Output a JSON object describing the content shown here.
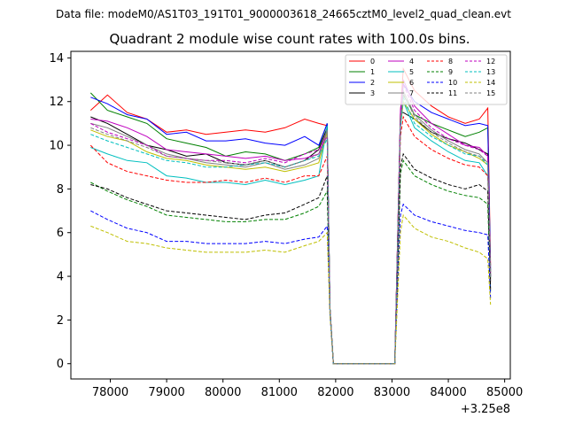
{
  "chart_data": {
    "type": "line",
    "suptitle": "Data file: modeM0/AS1T03_191T01_9000003618_24665cztM0_level2_quad_clean.evt",
    "title": "Quadrant 2 module wise count rates with 100.0s bins.",
    "xlabel": "",
    "ylabel": "",
    "x_offset_label": "+3.25e8",
    "xlim": [
      77300,
      85100
    ],
    "ylim": [
      -0.7,
      14.3
    ],
    "xticks": [
      78000,
      79000,
      80000,
      81000,
      82000,
      83000,
      84000,
      85000
    ],
    "yticks": [
      0,
      2,
      4,
      6,
      8,
      10,
      12,
      14
    ],
    "gaps": [
      [
        81950,
        83050
      ]
    ],
    "segments": [
      [
        77650,
        81850
      ],
      [
        83100,
        84750
      ]
    ],
    "series": [
      {
        "name": "0",
        "color": "#ff0000",
        "dash": "solid",
        "values": [
          11.6,
          12.3,
          11.5,
          11.2,
          10.6,
          10.7,
          10.5,
          10.6,
          10.7,
          10.6,
          10.8,
          11.2,
          11.0,
          10.9,
          2.5,
          0,
          0,
          11.5,
          13.5,
          12.5,
          11.8,
          11.3,
          11.0,
          11.2,
          11.7,
          4.5
        ]
      },
      {
        "name": "1",
        "color": "#008000",
        "dash": "solid",
        "values": [
          12.4,
          11.6,
          11.3,
          11.0,
          10.3,
          10.1,
          9.9,
          9.5,
          9.7,
          9.6,
          9.3,
          9.6,
          9.9,
          11.0,
          2.5,
          0,
          0,
          11.0,
          12.3,
          11.4,
          11.0,
          10.7,
          10.4,
          10.6,
          10.8,
          4.2
        ]
      },
      {
        "name": "2",
        "color": "#0000ff",
        "dash": "solid",
        "values": [
          12.2,
          11.9,
          11.4,
          11.2,
          10.5,
          10.6,
          10.2,
          10.2,
          10.3,
          10.1,
          10.0,
          10.4,
          10.0,
          11.0,
          2.5,
          0,
          0,
          11.2,
          12.8,
          12.0,
          11.5,
          11.2,
          10.9,
          11.0,
          10.9,
          4.3
        ]
      },
      {
        "name": "3",
        "color": "#000000",
        "dash": "solid",
        "values": [
          11.3,
          11.0,
          10.5,
          10.0,
          9.8,
          9.5,
          9.6,
          9.2,
          9.1,
          9.3,
          9.0,
          9.3,
          9.8,
          10.8,
          2.5,
          0,
          0,
          11.5,
          11.5,
          11.2,
          10.6,
          10.3,
          10.1,
          9.8,
          9.6,
          4.0
        ]
      },
      {
        "name": "4",
        "color": "#bf00bf",
        "dash": "solid",
        "values": [
          11.2,
          11.1,
          10.8,
          10.4,
          9.8,
          9.7,
          9.6,
          9.5,
          9.4,
          9.5,
          9.3,
          9.4,
          9.6,
          10.7,
          2.5,
          0,
          0,
          11.6,
          13.0,
          11.8,
          11.0,
          10.5,
          10.0,
          9.9,
          9.5,
          4.0
        ]
      },
      {
        "name": "5",
        "color": "#00bfbf",
        "dash": "solid",
        "values": [
          9.9,
          9.6,
          9.3,
          9.2,
          8.6,
          8.5,
          8.3,
          8.3,
          8.2,
          8.4,
          8.2,
          8.4,
          8.6,
          10.9,
          2.5,
          0,
          0,
          10.8,
          12.0,
          10.8,
          10.2,
          9.7,
          9.3,
          9.2,
          8.6,
          3.8
        ]
      },
      {
        "name": "6",
        "color": "#bfbf00",
        "dash": "solid",
        "values": [
          10.7,
          10.4,
          10.2,
          9.7,
          9.4,
          9.3,
          9.1,
          9.0,
          8.9,
          9.0,
          8.8,
          9.0,
          9.2,
          10.6,
          2.5,
          0,
          0,
          11.0,
          12.0,
          11.2,
          10.5,
          10.0,
          9.7,
          9.4,
          9.1,
          3.9
        ]
      },
      {
        "name": "7",
        "color": "#808080",
        "dash": "solid",
        "values": [
          11.0,
          10.8,
          10.4,
          10.0,
          9.6,
          9.4,
          9.2,
          9.1,
          9.0,
          9.2,
          8.9,
          9.1,
          9.4,
          10.7,
          2.5,
          0,
          0,
          11.2,
          12.5,
          11.4,
          10.7,
          10.2,
          9.8,
          9.6,
          9.2,
          3.9
        ]
      },
      {
        "name": "8",
        "color": "#ff0000",
        "dash": "dashed",
        "values": [
          10.0,
          9.2,
          8.8,
          8.6,
          8.4,
          8.3,
          8.3,
          8.4,
          8.3,
          8.5,
          8.3,
          8.6,
          8.6,
          9.5,
          2.5,
          0,
          0,
          10.4,
          11.3,
          10.4,
          9.8,
          9.4,
          9.1,
          9.0,
          8.6,
          3.7
        ]
      },
      {
        "name": "9",
        "color": "#008000",
        "dash": "dashed",
        "values": [
          8.3,
          7.9,
          7.5,
          7.2,
          6.8,
          6.7,
          6.6,
          6.5,
          6.5,
          6.6,
          6.6,
          6.9,
          7.2,
          7.9,
          2.4,
          0,
          0,
          8.7,
          9.3,
          8.6,
          8.2,
          7.9,
          7.7,
          7.6,
          7.3,
          3.3
        ]
      },
      {
        "name": "10",
        "color": "#0000ff",
        "dash": "dashed",
        "values": [
          7.0,
          6.6,
          6.2,
          6.0,
          5.6,
          5.6,
          5.5,
          5.5,
          5.5,
          5.6,
          5.5,
          5.7,
          5.8,
          6.3,
          2.2,
          0,
          0,
          6.8,
          7.3,
          6.8,
          6.5,
          6.3,
          6.1,
          6.0,
          5.9,
          3.0
        ]
      },
      {
        "name": "11",
        "color": "#000000",
        "dash": "dashed",
        "values": [
          8.2,
          8.0,
          7.6,
          7.3,
          7.0,
          6.9,
          6.8,
          6.7,
          6.6,
          6.8,
          6.9,
          7.3,
          7.6,
          8.6,
          2.5,
          0,
          0,
          9.0,
          9.6,
          8.9,
          8.5,
          8.2,
          8.0,
          8.2,
          7.9,
          3.4
        ]
      },
      {
        "name": "12",
        "color": "#bf00bf",
        "dash": "dashed",
        "values": [
          11.0,
          10.6,
          10.3,
          10.0,
          9.5,
          9.4,
          9.3,
          9.3,
          9.2,
          9.4,
          9.2,
          9.6,
          9.8,
          10.4,
          2.5,
          0,
          0,
          11.0,
          12.8,
          11.6,
          10.8,
          10.3,
          10.0,
          9.8,
          9.5,
          4.0
        ]
      },
      {
        "name": "13",
        "color": "#00bfbf",
        "dash": "dashed",
        "values": [
          10.5,
          10.2,
          9.9,
          9.6,
          9.3,
          9.2,
          9.0,
          9.0,
          9.1,
          9.2,
          9.0,
          9.3,
          9.5,
          10.3,
          2.5,
          0,
          0,
          11.0,
          12.2,
          11.0,
          10.4,
          10.0,
          9.6,
          9.5,
          9.1,
          3.9
        ]
      },
      {
        "name": "14",
        "color": "#bfbf00",
        "dash": "dashed",
        "values": [
          6.3,
          6.0,
          5.6,
          5.5,
          5.3,
          5.2,
          5.1,
          5.1,
          5.1,
          5.2,
          5.1,
          5.4,
          5.6,
          6.0,
          2.2,
          0,
          0,
          6.0,
          6.8,
          6.2,
          5.8,
          5.6,
          5.3,
          5.1,
          4.8,
          2.7
        ]
      },
      {
        "name": "15",
        "color": "#808080",
        "dash": "dashed",
        "values": [
          10.8,
          10.5,
          10.2,
          9.9,
          9.5,
          9.4,
          9.3,
          9.2,
          9.1,
          9.3,
          9.0,
          9.3,
          9.6,
          10.4,
          2.5,
          0,
          0,
          11.1,
          12.4,
          11.3,
          10.6,
          10.1,
          9.7,
          9.5,
          9.2,
          3.9
        ]
      }
    ],
    "x": [
      77650,
      77950,
      78300,
      78650,
      79000,
      79350,
      79700,
      80050,
      80400,
      80750,
      81100,
      81450,
      81700,
      81850,
      81900,
      81960,
      83050,
      83150,
      83200,
      83400,
      83700,
      84000,
      84300,
      84550,
      84700,
      84750
    ],
    "legend_location": "top-right",
    "legend_columns": 4
  }
}
